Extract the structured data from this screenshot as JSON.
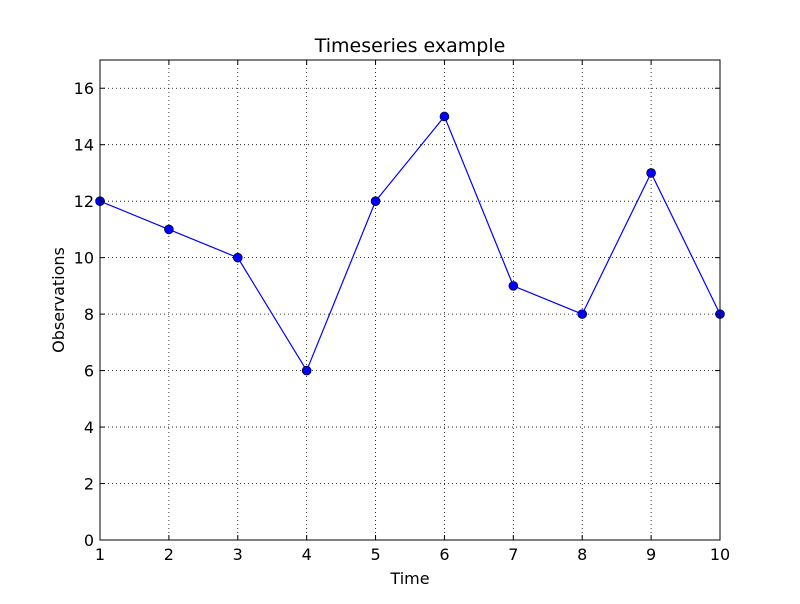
{
  "chart_data": {
    "type": "line",
    "title": "Timeseries example",
    "xlabel": "Time",
    "ylabel": "Observations",
    "xlim": [
      1,
      10
    ],
    "ylim": [
      0,
      17
    ],
    "xticks": [
      1,
      2,
      3,
      4,
      5,
      6,
      7,
      8,
      9,
      10
    ],
    "yticks": [
      0,
      2,
      4,
      6,
      8,
      10,
      12,
      14,
      16
    ],
    "grid": true,
    "legend": "none",
    "series": [
      {
        "x": [
          1,
          2,
          3,
          4,
          5,
          6,
          7,
          8,
          9,
          10
        ],
        "y": [
          12,
          11,
          10,
          6,
          12,
          15,
          9,
          8,
          13,
          8
        ],
        "color": "#0000ff",
        "marker": "circle"
      }
    ]
  }
}
